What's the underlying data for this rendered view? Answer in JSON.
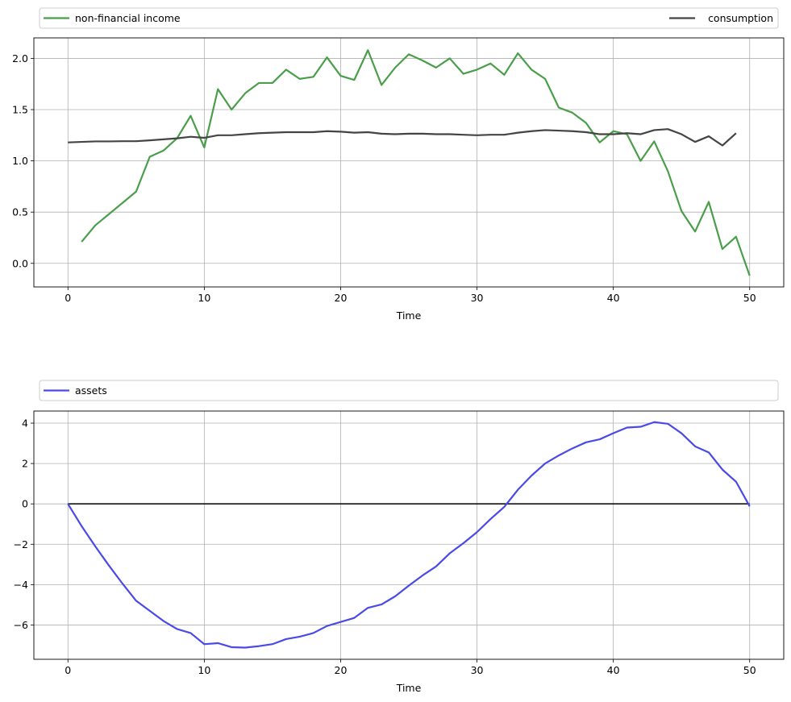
{
  "chart_data": [
    {
      "type": "line",
      "xlabel": "Time",
      "ylabel": "",
      "xlim": [
        -2.5,
        52.5
      ],
      "ylim": [
        -0.23,
        2.2
      ],
      "xticks": [
        0,
        10,
        20,
        30,
        40,
        50
      ],
      "yticks": [
        0.0,
        0.5,
        1.0,
        1.5,
        2.0
      ],
      "xtick_labels": [
        "0",
        "10",
        "20",
        "30",
        "40",
        "50"
      ],
      "ytick_labels": [
        "0.0",
        "0.5",
        "1.0",
        "1.5",
        "2.0"
      ],
      "grid": true,
      "legend": {
        "placement": "top, above plot, expanded"
      },
      "series": [
        {
          "name": "non-financial income",
          "color": "#4a9e4a",
          "x": [
            1,
            2,
            3,
            4,
            5,
            6,
            7,
            8,
            9,
            10,
            11,
            12,
            13,
            14,
            15,
            16,
            17,
            18,
            19,
            20,
            21,
            22,
            23,
            24,
            25,
            26,
            27,
            28,
            29,
            30,
            31,
            32,
            33,
            34,
            35,
            36,
            37,
            38,
            39,
            40,
            41,
            42,
            43,
            44,
            45,
            46,
            47,
            48,
            49,
            50
          ],
          "values": [
            0.21,
            0.37,
            0.48,
            0.59,
            0.7,
            1.04,
            1.1,
            1.22,
            1.44,
            1.13,
            1.7,
            1.5,
            1.66,
            1.76,
            1.76,
            1.89,
            1.8,
            1.82,
            2.01,
            1.83,
            1.79,
            2.08,
            1.74,
            1.91,
            2.04,
            1.98,
            1.91,
            2.0,
            1.85,
            1.89,
            1.95,
            1.84,
            2.05,
            1.89,
            1.8,
            1.52,
            1.47,
            1.37,
            1.18,
            1.29,
            1.26,
            1.0,
            1.19,
            0.9,
            0.51,
            0.31,
            0.6,
            0.14,
            0.26,
            -0.12
          ]
        },
        {
          "name": "consumption",
          "color": "#444444",
          "x": [
            0,
            1,
            2,
            3,
            4,
            5,
            6,
            7,
            8,
            9,
            10,
            11,
            12,
            13,
            14,
            15,
            16,
            17,
            18,
            19,
            20,
            21,
            22,
            23,
            24,
            25,
            26,
            27,
            28,
            29,
            30,
            31,
            32,
            33,
            34,
            35,
            36,
            37,
            38,
            39,
            40,
            41,
            42,
            43,
            44,
            45,
            46,
            47,
            48,
            49
          ],
          "values": [
            1.18,
            1.185,
            1.19,
            1.19,
            1.192,
            1.192,
            1.2,
            1.21,
            1.22,
            1.235,
            1.225,
            1.25,
            1.25,
            1.26,
            1.27,
            1.275,
            1.28,
            1.28,
            1.28,
            1.29,
            1.285,
            1.275,
            1.28,
            1.265,
            1.26,
            1.265,
            1.265,
            1.26,
            1.26,
            1.255,
            1.25,
            1.255,
            1.255,
            1.275,
            1.29,
            1.3,
            1.295,
            1.29,
            1.28,
            1.26,
            1.26,
            1.27,
            1.26,
            1.3,
            1.31,
            1.26,
            1.185,
            1.24,
            1.15,
            1.27
          ]
        }
      ]
    },
    {
      "type": "line",
      "xlabel": "Time",
      "ylabel": "",
      "xlim": [
        -2.5,
        52.5
      ],
      "ylim": [
        -7.7,
        4.6
      ],
      "xticks": [
        0,
        10,
        20,
        30,
        40,
        50
      ],
      "yticks": [
        -6,
        -4,
        -2,
        0,
        2,
        4
      ],
      "xtick_labels": [
        "0",
        "10",
        "20",
        "30",
        "40",
        "50"
      ],
      "ytick_labels": [
        "−6",
        "−4",
        "−2",
        "0",
        "2",
        "4"
      ],
      "grid": true,
      "reference_line": {
        "y": 0,
        "x_from": 0,
        "x_to": 50,
        "color": "#000000"
      },
      "legend": {
        "placement": "top, above plot, expanded"
      },
      "series": [
        {
          "name": "assets",
          "color": "#4a4ae8",
          "x": [
            0,
            1,
            2,
            3,
            4,
            5,
            6,
            7,
            8,
            9,
            10,
            11,
            12,
            13,
            14,
            15,
            16,
            17,
            18,
            19,
            20,
            21,
            22,
            23,
            24,
            25,
            26,
            27,
            28,
            29,
            30,
            31,
            32,
            33,
            34,
            35,
            36,
            37,
            38,
            39,
            40,
            41,
            42,
            43,
            44,
            45,
            46,
            47,
            48,
            49,
            50
          ],
          "values": [
            0.0,
            -1.1,
            -2.1,
            -3.05,
            -3.95,
            -4.8,
            -5.3,
            -5.8,
            -6.2,
            -6.4,
            -6.95,
            -6.9,
            -7.1,
            -7.12,
            -7.05,
            -6.95,
            -6.7,
            -6.58,
            -6.4,
            -6.05,
            -5.85,
            -5.65,
            -5.15,
            -4.98,
            -4.58,
            -4.05,
            -3.55,
            -3.1,
            -2.45,
            -1.95,
            -1.4,
            -0.75,
            -0.15,
            0.7,
            1.4,
            2.0,
            2.4,
            2.75,
            3.05,
            3.2,
            3.5,
            3.78,
            3.82,
            4.05,
            3.97,
            3.5,
            2.85,
            2.55,
            1.7,
            1.1,
            -0.12
          ]
        }
      ]
    }
  ]
}
